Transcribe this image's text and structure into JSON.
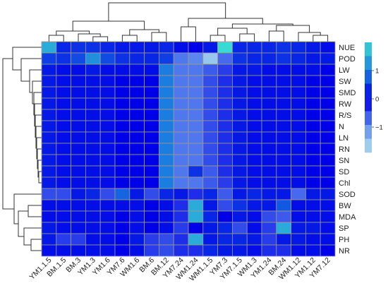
{
  "chart_data": {
    "type": "heatmap",
    "title": "",
    "xlabel": "",
    "ylabel": "",
    "columns": [
      "YM1.1.5",
      "BM.1.5",
      "BM.3",
      "YM1.3",
      "YM1.6",
      "YM7.6",
      "WM1.6",
      "BM.6",
      "BM.12",
      "YM7.24",
      "WM1.24",
      "WM1.1.5",
      "YM7.3",
      "YM7.1.5",
      "WM1.3",
      "YM1.24",
      "BM.24",
      "WM1.12",
      "YM1.12",
      "YM7.12"
    ],
    "rows": [
      "NUE",
      "POD",
      "LW",
      "SW",
      "SMD",
      "RW",
      "R/S",
      "N",
      "LN",
      "RN",
      "SN",
      "SD",
      "Chl",
      "SOD",
      "BW",
      "MDA",
      "SP",
      "PH",
      "NR"
    ],
    "values": [
      [
        1.5,
        0.3,
        0.4,
        0.4,
        0.3,
        0.2,
        0.2,
        0.2,
        0.3,
        0.1,
        0.0,
        0.2,
        2.0,
        0.3,
        0.3,
        0.3,
        0.4,
        0.3,
        0.2,
        0.1
      ],
      [
        0.5,
        0.4,
        0.6,
        1.2,
        0.6,
        0.4,
        0.3,
        0.3,
        0.5,
        -0.8,
        -0.9,
        -1.6,
        -0.7,
        0.4,
        0.3,
        0.3,
        0.4,
        0.3,
        0.2,
        0.2
      ],
      [
        0.2,
        0.1,
        0.1,
        0.2,
        0.1,
        0.1,
        0.1,
        0.1,
        1.0,
        -0.8,
        -0.8,
        -0.6,
        -0.4,
        0.2,
        0.2,
        0.1,
        0.1,
        0.1,
        0.1,
        0.0
      ],
      [
        0.2,
        0.1,
        0.1,
        0.1,
        0.1,
        0.0,
        0.0,
        0.0,
        1.0,
        -0.8,
        -0.8,
        -0.5,
        -0.3,
        0.2,
        0.1,
        0.1,
        0.1,
        0.1,
        0.0,
        0.0
      ],
      [
        0.2,
        0.1,
        0.1,
        0.1,
        0.1,
        0.0,
        0.0,
        0.0,
        1.0,
        -0.8,
        -0.8,
        -0.5,
        -0.3,
        0.2,
        0.1,
        0.1,
        0.1,
        0.1,
        0.0,
        0.0
      ],
      [
        0.2,
        0.1,
        0.1,
        0.1,
        0.1,
        0.0,
        0.0,
        0.0,
        1.0,
        -0.8,
        -0.8,
        -0.5,
        -0.3,
        0.2,
        0.1,
        0.1,
        0.1,
        0.1,
        0.0,
        0.0
      ],
      [
        0.2,
        0.1,
        0.1,
        0.1,
        0.1,
        0.0,
        0.0,
        0.0,
        1.0,
        -0.8,
        -0.8,
        -0.5,
        -0.3,
        0.2,
        0.1,
        0.1,
        0.1,
        0.1,
        0.0,
        0.0
      ],
      [
        0.2,
        0.1,
        0.1,
        0.1,
        0.1,
        0.0,
        0.0,
        0.0,
        1.0,
        -0.8,
        -0.8,
        -0.5,
        -0.3,
        0.2,
        0.1,
        0.1,
        0.1,
        0.1,
        0.0,
        0.0
      ],
      [
        0.2,
        0.1,
        0.1,
        0.1,
        0.1,
        0.0,
        0.0,
        0.0,
        1.0,
        -0.8,
        -0.8,
        -0.5,
        -0.3,
        0.2,
        0.1,
        0.1,
        0.1,
        0.1,
        0.0,
        0.0
      ],
      [
        0.2,
        0.1,
        0.1,
        0.1,
        0.1,
        0.0,
        0.0,
        0.0,
        1.0,
        -0.8,
        -0.8,
        -0.5,
        -0.3,
        0.2,
        0.1,
        0.1,
        0.1,
        0.1,
        0.0,
        0.0
      ],
      [
        0.2,
        0.1,
        0.1,
        0.1,
        0.1,
        0.0,
        0.0,
        0.0,
        1.0,
        -0.8,
        -0.8,
        -0.5,
        -0.3,
        0.2,
        0.1,
        0.1,
        0.1,
        0.1,
        0.0,
        0.0
      ],
      [
        0.2,
        0.1,
        0.1,
        0.1,
        0.1,
        0.0,
        0.0,
        0.0,
        1.0,
        -0.8,
        0.4,
        -0.6,
        -0.3,
        0.2,
        0.1,
        0.1,
        0.1,
        0.1,
        0.0,
        0.0
      ],
      [
        0.2,
        0.1,
        0.1,
        0.1,
        0.1,
        0.0,
        0.0,
        0.0,
        1.0,
        -0.8,
        -0.8,
        -0.6,
        -0.4,
        0.2,
        0.1,
        0.1,
        0.1,
        0.1,
        0.0,
        0.0
      ],
      [
        -0.5,
        -0.5,
        0.2,
        0.3,
        -0.5,
        0.8,
        0.2,
        -0.5,
        0.3,
        0.2,
        -0.3,
        0.3,
        -0.6,
        0.2,
        0.3,
        0.2,
        0.2,
        -0.7,
        0.2,
        0.2
      ],
      [
        0.1,
        0.1,
        0.1,
        0.1,
        0.1,
        0.1,
        0.1,
        0.0,
        0.1,
        -0.3,
        1.5,
        0.2,
        -0.5,
        0.4,
        0.2,
        0.2,
        0.7,
        0.1,
        0.1,
        0.1
      ],
      [
        0.1,
        0.1,
        0.1,
        0.1,
        0.1,
        0.0,
        0.1,
        0.0,
        0.1,
        -0.3,
        1.5,
        0.3,
        0.0,
        0.2,
        0.1,
        -0.5,
        -0.6,
        0.1,
        0.1,
        0.1
      ],
      [
        0.2,
        0.1,
        0.1,
        0.1,
        0.1,
        0.0,
        0.1,
        0.0,
        0.1,
        -0.4,
        0.0,
        0.2,
        0.3,
        -0.5,
        0.1,
        -0.4,
        1.5,
        0.2,
        0.2,
        0.1
      ],
      [
        0.2,
        -0.4,
        -0.4,
        0.1,
        0.1,
        0.0,
        0.2,
        -0.4,
        -0.5,
        -0.3,
        1.5,
        0.2,
        0.3,
        0.3,
        0.2,
        -0.4,
        0.2,
        0.2,
        0.1,
        0.1
      ],
      [
        0.1,
        0.1,
        0.1,
        0.1,
        0.1,
        0.0,
        0.1,
        -0.4,
        -0.5,
        -0.3,
        -0.3,
        0.3,
        0.2,
        0.2,
        0.1,
        -0.3,
        -0.3,
        0.1,
        0.1,
        0.0
      ]
    ],
    "scale": {
      "min": -1.9,
      "max": 2.0,
      "tick_labels": [
        "1",
        "0",
        "−1"
      ]
    },
    "colors": {
      "low": "#b2e3ec",
      "mid_low": "#5a87ee",
      "mid": "#0000e8",
      "mid_high": "#1b7de0",
      "high": "#39d9d4",
      "grid": "#9a9a9a"
    },
    "legend_position": "right",
    "grid": true
  }
}
